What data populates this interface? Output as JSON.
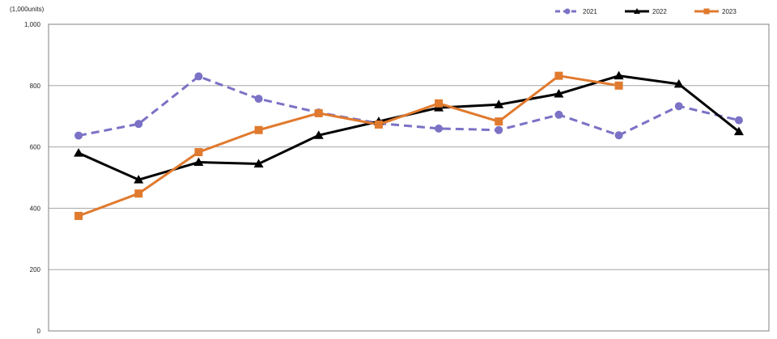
{
  "chart_data": {
    "type": "line",
    "unit_label": "(1,000units)",
    "x": [
      1,
      2,
      3,
      4,
      5,
      6,
      7,
      8,
      9,
      10,
      11,
      12
    ],
    "ylim": [
      0,
      1000
    ],
    "y_ticks": [
      0,
      200,
      400,
      600,
      800,
      1000
    ],
    "y_tick_labels": [
      "0",
      "200",
      "400",
      "600",
      "800",
      "1,000"
    ],
    "grid": true,
    "legend_position": "top-right",
    "series": [
      {
        "name": "2021",
        "color": "#7b72c6",
        "line_style": "dashed",
        "marker": "circle",
        "values": [
          637,
          675,
          830,
          757,
          712,
          677,
          660,
          655,
          705,
          638,
          733,
          687
        ]
      },
      {
        "name": "2022",
        "color": "#000000",
        "line_style": "solid",
        "marker": "triangle",
        "values": [
          580,
          493,
          550,
          545,
          638,
          683,
          728,
          738,
          773,
          832,
          805,
          650
        ]
      },
      {
        "name": "2023",
        "color": "#e07a2e",
        "line_style": "solid",
        "marker": "square",
        "values": [
          375,
          448,
          583,
          655,
          710,
          673,
          742,
          683,
          832,
          800,
          null,
          null
        ]
      }
    ]
  }
}
